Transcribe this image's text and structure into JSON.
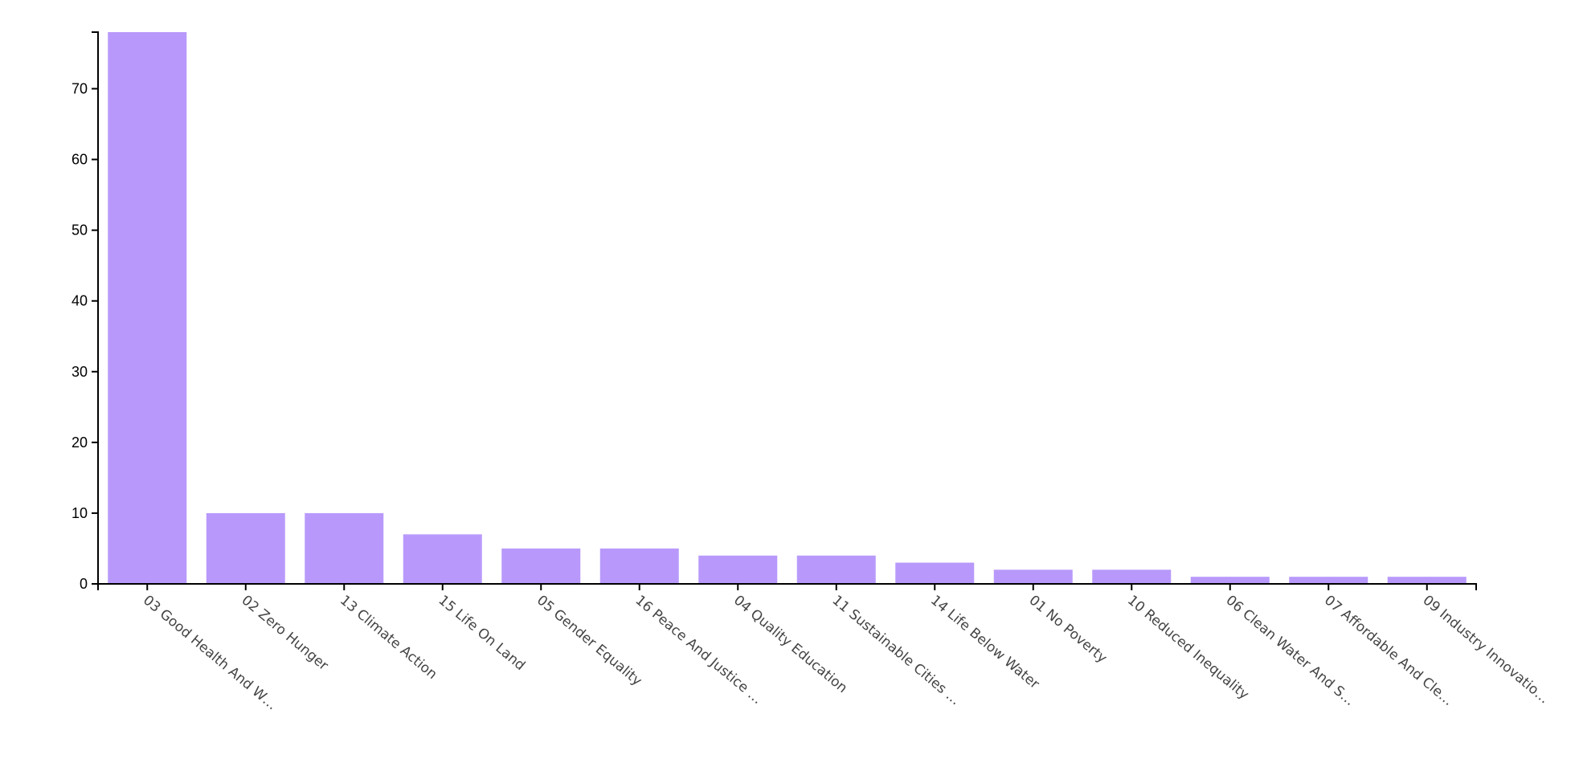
{
  "chart_data": {
    "type": "bar",
    "categories": [
      "03 Good Health And W…",
      "02 Zero Hunger",
      "13 Climate Action",
      "15 Life On Land",
      "05 Gender Equality",
      "16 Peace And Justice …",
      "04 Quality Education",
      "11 Sustainable Cities …",
      "14 Life Below Water",
      "01 No Poverty",
      "10 Reduced Inequality",
      "06 Clean Water And S…",
      "07 Affordable And Cle…",
      "09 Industry Innovatio…"
    ],
    "values": [
      78,
      10,
      10,
      7,
      5,
      5,
      4,
      4,
      3,
      2,
      2,
      1,
      1,
      1
    ],
    "ylim": [
      0,
      78
    ],
    "yticks": [
      0,
      10,
      20,
      30,
      40,
      50,
      60,
      70
    ],
    "bar_color": "#b899fb",
    "grid": false,
    "title": "",
    "xlabel": "",
    "ylabel": ""
  }
}
